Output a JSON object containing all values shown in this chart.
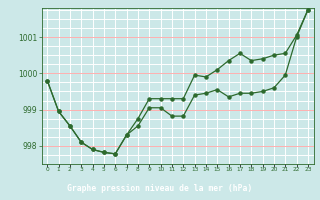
{
  "title": "Graphe pression niveau de la mer (hPa)",
  "x_labels": [
    "0",
    "1",
    "2",
    "3",
    "4",
    "5",
    "6",
    "7",
    "8",
    "9",
    "10",
    "11",
    "12",
    "13",
    "14",
    "15",
    "16",
    "17",
    "18",
    "19",
    "20",
    "21",
    "22",
    "23"
  ],
  "line1": [
    999.8,
    998.95,
    998.55,
    998.1,
    997.9,
    997.82,
    997.78,
    998.3,
    998.55,
    999.05,
    999.05,
    998.82,
    998.82,
    999.4,
    999.45,
    999.55,
    999.35,
    999.45,
    999.45,
    999.5,
    999.6,
    999.95,
    1001.0,
    1001.75
  ],
  "line2": [
    999.8,
    998.95,
    998.55,
    998.1,
    997.9,
    997.82,
    997.78,
    998.3,
    998.75,
    999.3,
    999.3,
    999.3,
    999.3,
    999.95,
    999.9,
    1000.1,
    1000.35,
    1000.55,
    1000.35,
    1000.4,
    1000.5,
    1000.55,
    1001.05,
    1001.75
  ],
  "ylim": [
    997.5,
    1001.8
  ],
  "yticks": [
    998,
    999,
    1000,
    1001
  ],
  "line_color": "#2d6a2d",
  "bg_color": "#cce8e8",
  "grid_color_white": "#ffffff",
  "grid_color_pink": "#ffb0b0",
  "title_bg": "#336633",
  "title_fg": "#ffffff"
}
